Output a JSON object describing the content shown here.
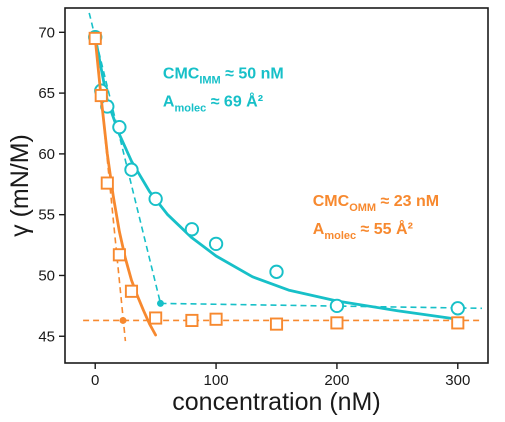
{
  "chart_data": {
    "type": "scatter",
    "xlabel": "concentration (nM)",
    "ylabel": "γ (mN/M)",
    "xlim": [
      -25,
      325
    ],
    "ylim": [
      42.8,
      72
    ],
    "xticks": [
      0,
      100,
      200,
      300
    ],
    "yticks": [
      45,
      50,
      55,
      60,
      65,
      70
    ],
    "grid": false,
    "series": [
      {
        "color": "#17c0c8",
        "marker": "circle",
        "x": [
          0,
          5,
          10,
          20,
          30,
          50,
          80,
          100,
          150,
          200,
          300
        ],
        "y": [
          69.6,
          65.2,
          63.9,
          62.2,
          58.7,
          56.3,
          53.8,
          52.6,
          50.3,
          47.5,
          47.3
        ],
        "fit": {
          "x": [
            0,
            10,
            20,
            30,
            45,
            60,
            80,
            100,
            130,
            160,
            200,
            250,
            300
          ],
          "y": [
            69.6,
            64.4,
            61.6,
            59.4,
            56.9,
            55.0,
            53.1,
            51.6,
            49.9,
            48.8,
            47.9,
            47.1,
            46.4
          ]
        },
        "guides": [
          {
            "x": [
              -5,
              54
            ],
            "y": [
              71.6,
              47.7
            ]
          },
          {
            "x": [
              54,
              320
            ],
            "y": [
              47.7,
              47.3
            ]
          }
        ],
        "intersection": {
          "x": 54,
          "y": 47.7
        }
      },
      {
        "color": "#f7892f",
        "marker": "square",
        "x": [
          0,
          5,
          10,
          20,
          30,
          50,
          80,
          100,
          150,
          200,
          300
        ],
        "y": [
          69.5,
          64.8,
          57.6,
          51.7,
          48.7,
          46.5,
          46.3,
          46.4,
          46.0,
          46.1,
          46.1
        ],
        "fit": {
          "x": [
            0,
            5,
            10,
            15,
            20,
            25,
            30,
            35,
            40,
            45,
            50
          ],
          "y": [
            69.5,
            64.5,
            60.0,
            56.5,
            53.6,
            51.4,
            49.6,
            48.3,
            47.1,
            46.0,
            45.1
          ]
        },
        "guides": [
          {
            "x": [
              0,
              25
            ],
            "y": [
              69.5,
              44.6
            ]
          },
          {
            "x": [
              -10,
              320
            ],
            "y": [
              46.3,
              46.3
            ]
          }
        ],
        "intersection": {
          "x": 23,
          "y": 46.3
        }
      }
    ],
    "annotations": [
      {
        "color": "#17c0c8",
        "at": [
          56,
          66.2
        ],
        "lines": [
          {
            "main": "CMC",
            "sub": "IMM",
            "rest": " ≈ 50 nM"
          },
          {
            "main": "A",
            "sub": "molec",
            "rest": " ≈ 69 Å²"
          }
        ]
      },
      {
        "color": "#f7892f",
        "at": [
          180,
          55.7
        ],
        "lines": [
          {
            "main": "CMC",
            "sub": "OMM",
            "rest": " ≈ 23 nM"
          },
          {
            "main": "A",
            "sub": "molec",
            "rest": " ≈ 55 Å²"
          }
        ]
      }
    ]
  }
}
